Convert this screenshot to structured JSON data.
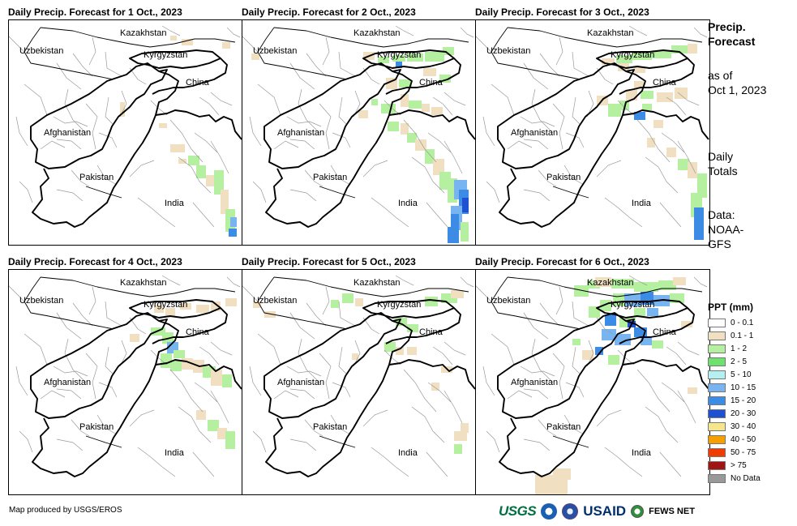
{
  "panels": [
    {
      "title": "Daily Precip. Forecast for 1 Oct., 2023"
    },
    {
      "title": "Daily Precip. Forecast for 2 Oct., 2023"
    },
    {
      "title": "Daily Precip. Forecast for 3 Oct., 2023"
    },
    {
      "title": "Daily Precip. Forecast for 4 Oct., 2023"
    },
    {
      "title": "Daily Precip. Forecast for 5 Oct., 2023"
    },
    {
      "title": "Daily Precip. Forecast for 6 Oct., 2023"
    }
  ],
  "map_labels": {
    "kazakhstan": "Kazakhstan",
    "uzbekistan": "Uzbekistan",
    "kyrgyzstan": "Kyrgyzstan",
    "china": "China",
    "afghanistan": "Afghanistan",
    "pakistan": "Pakistan",
    "india": "India"
  },
  "side": {
    "title_line1": "Precip.",
    "title_line2": "Forecast",
    "asof_line1": "as of",
    "asof_line2": "Oct 1, 2023",
    "totals_line1": "Daily",
    "totals_line2": "Totals",
    "data_line1": "Data:",
    "data_line2": "NOAA-",
    "data_line3": "GFS"
  },
  "legend": {
    "title": "PPT (mm)",
    "items": [
      {
        "label": "0 - 0.1",
        "color": "#ffffff"
      },
      {
        "label": "0.1 - 1",
        "color": "#f0dfc0"
      },
      {
        "label": "1 - 2",
        "color": "#b4f0a0"
      },
      {
        "label": "2 - 5",
        "color": "#6ee16e"
      },
      {
        "label": "5 - 10",
        "color": "#b4f0f0"
      },
      {
        "label": "10 - 15",
        "color": "#78b4f0"
      },
      {
        "label": "15 - 20",
        "color": "#3c8ce6"
      },
      {
        "label": "20 - 30",
        "color": "#1e50d2"
      },
      {
        "label": "30 - 40",
        "color": "#f5e68c"
      },
      {
        "label": "40 - 50",
        "color": "#f5a000"
      },
      {
        "label": "50 - 75",
        "color": "#f03c00"
      },
      {
        "label": "> 75",
        "color": "#a01414"
      },
      {
        "label": "No Data",
        "color": "#999999"
      }
    ]
  },
  "footer": {
    "credit": "Map produced by USGS/EROS"
  },
  "logos": {
    "usgs": "USGS",
    "usaid": "USAID",
    "fews": "FEWS NET"
  }
}
